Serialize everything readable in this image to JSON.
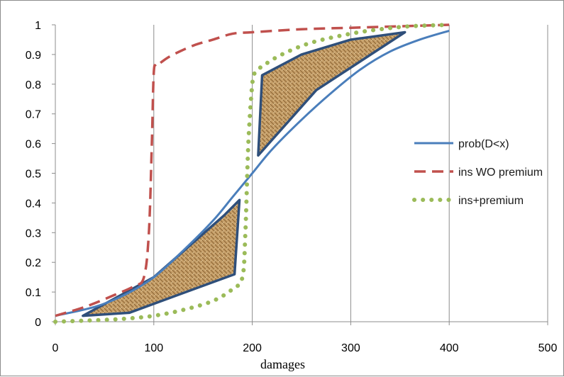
{
  "chart_data": {
    "type": "line",
    "xlabel": "damages",
    "ylabel": "",
    "title": "",
    "xlim": [
      0,
      500
    ],
    "ylim": [
      0,
      1
    ],
    "x_ticks": [
      0,
      100,
      200,
      300,
      400,
      500
    ],
    "y_ticks": [
      0,
      0.1,
      0.2,
      0.3,
      0.4,
      0.5,
      0.6,
      0.7,
      0.8,
      0.9,
      1
    ],
    "x_tick_labels": [
      "0",
      "100",
      "200",
      "300",
      "400",
      "500"
    ],
    "y_tick_labels": [
      "0",
      "0.1",
      "0.2",
      "0.3",
      "0.4",
      "0.5",
      "0.6",
      "0.7",
      "0.8",
      "0.9",
      "1"
    ],
    "grid": "vertical",
    "legend_position": "right",
    "series": [
      {
        "name": "prob(D<x)",
        "style": "solid",
        "color": "#4a7ebb",
        "x": [
          0,
          40,
          70,
          100,
          130,
          160,
          180,
          200,
          220,
          250,
          280,
          310,
          340,
          370,
          400
        ],
        "y": [
          0.02,
          0.05,
          0.09,
          0.15,
          0.24,
          0.34,
          0.42,
          0.5,
          0.58,
          0.68,
          0.77,
          0.85,
          0.91,
          0.95,
          0.98
        ]
      },
      {
        "name": "ins WO premium",
        "style": "dashed",
        "color": "#c0504d",
        "x": [
          0,
          30,
          60,
          80,
          90,
          95,
          98,
          100,
          103,
          110,
          120,
          140,
          160,
          180,
          200,
          250,
          300,
          350,
          400
        ],
        "y": [
          0.02,
          0.05,
          0.09,
          0.12,
          0.15,
          0.3,
          0.6,
          0.84,
          0.86,
          0.88,
          0.9,
          0.93,
          0.95,
          0.97,
          0.975,
          0.985,
          0.99,
          0.995,
          1.0
        ]
      },
      {
        "name": "ins+premium",
        "style": "dotted",
        "color": "#9bbb59",
        "x": [
          0,
          40,
          70,
          100,
          130,
          160,
          180,
          190,
          193,
          196,
          200,
          203,
          210,
          230,
          260,
          300,
          330,
          360,
          400
        ],
        "y": [
          0.0,
          0.005,
          0.01,
          0.02,
          0.04,
          0.07,
          0.11,
          0.15,
          0.3,
          0.6,
          0.8,
          0.84,
          0.86,
          0.9,
          0.94,
          0.97,
          0.985,
          0.995,
          1.0
        ]
      }
    ],
    "shaded_regions": [
      {
        "x": [
          28,
          75,
          182,
          187,
          172,
          100
        ],
        "y": [
          0.02,
          0.03,
          0.16,
          0.41,
          0.36,
          0.15
        ]
      },
      {
        "x": [
          206,
          210,
          250,
          300,
          355,
          265
        ],
        "y": [
          0.56,
          0.83,
          0.9,
          0.95,
          0.975,
          0.78
        ]
      }
    ],
    "region_fill": "#c39a62",
    "region_stroke": "#2f4f7a"
  }
}
